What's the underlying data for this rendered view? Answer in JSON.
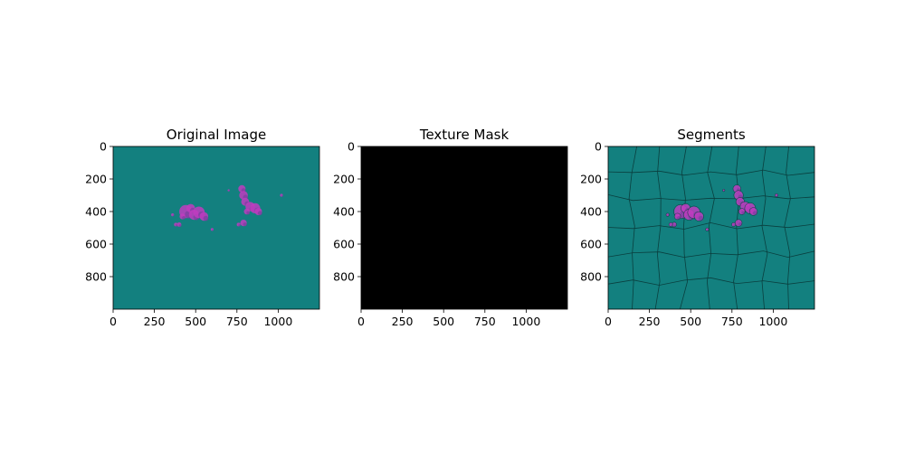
{
  "figure": {
    "background": "#ffffff"
  },
  "chart_data": [
    {
      "type": "heatmap",
      "title": "Original Image",
      "xlabel": "",
      "ylabel": "",
      "x_ticks": [
        0,
        250,
        500,
        750,
        1000
      ],
      "y_ticks": [
        0,
        200,
        400,
        600,
        800
      ],
      "xlim": [
        0,
        1250
      ],
      "ylim": [
        1000,
        0
      ],
      "background_color": "#13807f",
      "blob_color": "#c03cc0",
      "blobs": [
        {
          "x": 440,
          "y": 400,
          "r": 18
        },
        {
          "x": 470,
          "y": 380,
          "r": 12
        },
        {
          "x": 490,
          "y": 420,
          "r": 14
        },
        {
          "x": 520,
          "y": 405,
          "r": 16
        },
        {
          "x": 550,
          "y": 430,
          "r": 12
        },
        {
          "x": 420,
          "y": 430,
          "r": 8
        },
        {
          "x": 400,
          "y": 480,
          "r": 6
        },
        {
          "x": 380,
          "y": 480,
          "r": 5
        },
        {
          "x": 360,
          "y": 420,
          "r": 4
        },
        {
          "x": 600,
          "y": 510,
          "r": 4
        },
        {
          "x": 780,
          "y": 260,
          "r": 10
        },
        {
          "x": 790,
          "y": 300,
          "r": 12
        },
        {
          "x": 800,
          "y": 340,
          "r": 11
        },
        {
          "x": 830,
          "y": 370,
          "r": 13
        },
        {
          "x": 860,
          "y": 380,
          "r": 14
        },
        {
          "x": 880,
          "y": 400,
          "r": 10
        },
        {
          "x": 810,
          "y": 400,
          "r": 8
        },
        {
          "x": 790,
          "y": 470,
          "r": 9
        },
        {
          "x": 760,
          "y": 480,
          "r": 5
        },
        {
          "x": 1020,
          "y": 300,
          "r": 4
        },
        {
          "x": 700,
          "y": 270,
          "r": 3
        }
      ]
    },
    {
      "type": "heatmap",
      "title": "Texture Mask",
      "xlabel": "",
      "ylabel": "",
      "x_ticks": [
        0,
        250,
        500,
        750,
        1000
      ],
      "y_ticks": [
        0,
        200,
        400,
        600,
        800
      ],
      "xlim": [
        0,
        1250
      ],
      "ylim": [
        1000,
        0
      ],
      "background_color": "#000000",
      "blobs": []
    },
    {
      "type": "heatmap",
      "title": "Segments",
      "xlabel": "",
      "ylabel": "",
      "x_ticks": [
        0,
        250,
        500,
        750,
        1000
      ],
      "y_ticks": [
        0,
        200,
        400,
        600,
        800
      ],
      "xlim": [
        0,
        1250
      ],
      "ylim": [
        1000,
        0
      ],
      "background_color": "#13807f",
      "blob_color": "#c03cc0",
      "boundary_color": "#0a3f3f",
      "segment_columns_top": [
        0,
        150,
        310,
        460,
        620,
        780,
        940,
        1090,
        1250
      ],
      "segment_rows_left": [
        0,
        160,
        320,
        490,
        660,
        830,
        1000
      ],
      "blobs": [
        {
          "x": 440,
          "y": 400,
          "r": 18
        },
        {
          "x": 470,
          "y": 380,
          "r": 12
        },
        {
          "x": 490,
          "y": 420,
          "r": 14
        },
        {
          "x": 520,
          "y": 405,
          "r": 16
        },
        {
          "x": 550,
          "y": 430,
          "r": 12
        },
        {
          "x": 420,
          "y": 430,
          "r": 8
        },
        {
          "x": 400,
          "y": 480,
          "r": 6
        },
        {
          "x": 380,
          "y": 480,
          "r": 5
        },
        {
          "x": 360,
          "y": 420,
          "r": 4
        },
        {
          "x": 600,
          "y": 510,
          "r": 4
        },
        {
          "x": 780,
          "y": 260,
          "r": 10
        },
        {
          "x": 790,
          "y": 300,
          "r": 12
        },
        {
          "x": 800,
          "y": 340,
          "r": 11
        },
        {
          "x": 830,
          "y": 370,
          "r": 13
        },
        {
          "x": 860,
          "y": 380,
          "r": 14
        },
        {
          "x": 880,
          "y": 400,
          "r": 10
        },
        {
          "x": 810,
          "y": 400,
          "r": 8
        },
        {
          "x": 790,
          "y": 470,
          "r": 9
        },
        {
          "x": 760,
          "y": 480,
          "r": 5
        },
        {
          "x": 1020,
          "y": 300,
          "r": 4
        },
        {
          "x": 700,
          "y": 270,
          "r": 3
        }
      ]
    }
  ]
}
